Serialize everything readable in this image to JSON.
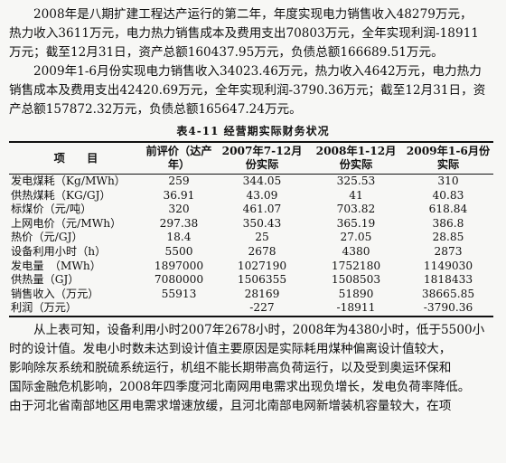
{
  "para1": [
    "2008年是八期扩建工程达产运行的第二年，年度实现电力销售收入48279万元，",
    "热力收入3611万元，电力热力销售成本及费用支出70803万元，全年实现利润-18911",
    "万元；截至12月31日，资产总额160437.95万元，负债总额166689.51万元。"
  ],
  "para2": [
    "2009年1-6月份实现电力销售收入34023.46万元，热力收入4642万元，电力热力",
    "销售成本及费用支出42420.69万元，全年实现利润-3790.36万元；截至12月31日，资",
    "产总额157872.32万元，负债总额165647.24万元。"
  ],
  "table_caption": "表4-11  经营期实际财务状况",
  "table": {
    "headers": [
      "项　　目",
      "前评价（达产年）",
      "2007年7-12月份实际",
      "2008年1-12月份实际",
      "2009年1-6月份实际"
    ],
    "rows": [
      [
        "发电煤耗（Kg/MWh）",
        "259",
        "344.05",
        "325.53",
        "310"
      ],
      [
        "供热煤耗（KG/GJ）",
        "36.91",
        "43.09",
        "41",
        "40.83"
      ],
      [
        "标煤价（元/吨）",
        "320",
        "461.07",
        "703.82",
        "618.84"
      ],
      [
        "上网电价（元/MWh）",
        "297.38",
        "350.43",
        "365.19",
        "386.8"
      ],
      [
        "热价（元/GJ）",
        "18.4",
        "25",
        "27.05",
        "28.85"
      ],
      [
        "设备利用小时（h）",
        "5500",
        "2678",
        "4380",
        "2873"
      ],
      [
        "发电量　（MWh）",
        "1897000",
        "1027190",
        "1752180",
        "1149030"
      ],
      [
        "供热量（GJ）",
        "7080000",
        "1506355",
        "1508503",
        "1818433"
      ],
      [
        "销售收入（万元）",
        "55913",
        "28169",
        "51890",
        "38665.85"
      ],
      [
        "利润（万元）",
        "",
        "-227",
        "-18911",
        "-3790.36"
      ]
    ]
  },
  "para3": [
    "从上表可知，设备利用小时2007年2678小时，2008年为4380小时，低于5500小",
    "时的设计值。发电小时数未达到设计值主要原因是实际耗用煤种偏离设计值较大，",
    "影响除灰系统和脱硫系统运行，机组不能长期带高负荷运行，以及受到奥运环保和",
    "国际金融危机影响，2008年四季度河北南网用电需求出现负增长，发电负荷率降低。",
    "由于河北省南部地区用电需求增速放缓，且河北南部电网新增装机容量较大，在项"
  ]
}
